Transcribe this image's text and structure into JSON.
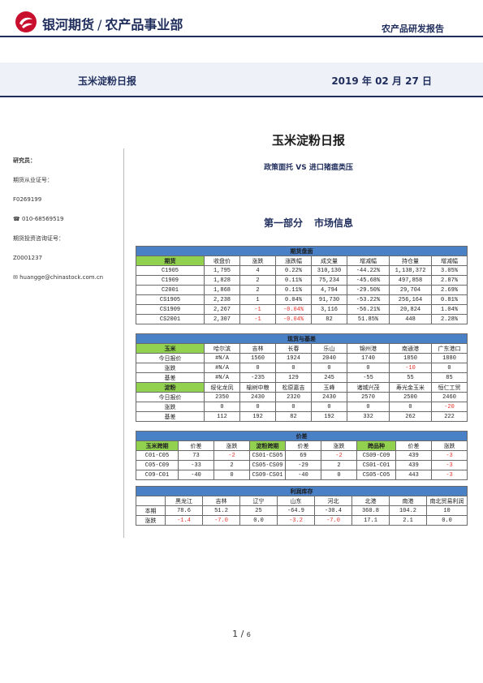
{
  "header": {
    "company": "银河期货",
    "department": "农产品事业部",
    "report_type": "农产品研发报告",
    "band_title": "玉米淀粉日报",
    "date": "2019 年 02 月 27 日"
  },
  "sidebar": {
    "researcher_label": "研究员：",
    "license_label": "期货从业证号：",
    "license_no": "F0269199",
    "phone": "☎ 010-68569519",
    "advisor_label": "期货投资咨询证号：",
    "advisor_no": "Z0001237",
    "email": "✉ huangge@chinastock.com.cn"
  },
  "title": "玉米淀粉日报",
  "subtitle": "政策面托 VS 进口猪瘟类压",
  "section": {
    "part": "第一部分",
    "name": "市场信息"
  },
  "futures": {
    "title": "期货盘面",
    "headers": [
      "期货",
      "收盘价",
      "涨跌",
      "涨跌幅",
      "成交量",
      "增减幅",
      "持仓量",
      "增减幅"
    ],
    "rows": [
      [
        "C1905",
        "1,795",
        "4",
        "0.22%",
        "310,130",
        "-44.22%",
        "1,138,372",
        "3.05%"
      ],
      [
        "C1909",
        "1,828",
        "2",
        "0.11%",
        "75,234",
        "-45.68%",
        "497,858",
        "2.87%"
      ],
      [
        "C2001",
        "1,868",
        "2",
        "0.11%",
        "4,794",
        "-29.50%",
        "29,704",
        "2.69%"
      ],
      [
        "CS1905",
        "2,238",
        "1",
        "0.04%",
        "91,730",
        "-53.22%",
        "256,164",
        "0.81%"
      ],
      [
        "CS1909",
        "2,267",
        "-1",
        "-0.04%",
        "3,116",
        "-56.21%",
        "20,824",
        "1.04%"
      ],
      [
        "CS2001",
        "2,307",
        "-1",
        "-0.04%",
        "82",
        "51.85%",
        "448",
        "2.28%"
      ]
    ]
  },
  "spot": {
    "title": "现货与基差",
    "corn_headers": [
      "玉米",
      "哈尔滨",
      "吉林",
      "长春",
      "乐山",
      "锦州港",
      "南通港",
      "广东港口"
    ],
    "corn_rows": [
      [
        "今日报价",
        "#N/A",
        "1560",
        "1924",
        "2040",
        "1740",
        "1850",
        "1880"
      ],
      [
        "涨跌",
        "#N/A",
        "0",
        "0",
        "0",
        "0",
        "-10",
        "0"
      ],
      [
        "基差",
        "#N/A",
        "-235",
        "129",
        "245",
        "-55",
        "55",
        "85"
      ]
    ],
    "starch_headers": [
      "淀粉",
      "绥化龙凤",
      "榆树中粮",
      "松原嘉吉",
      "玉峰",
      "诸城兴茂",
      "寿光金玉米",
      "恒仁工贸"
    ],
    "starch_rows": [
      [
        "今日报价",
        "2350",
        "2430",
        "2320",
        "2430",
        "2570",
        "2500",
        "2460"
      ],
      [
        "涨跌",
        "0",
        "0",
        "0",
        "0",
        "0",
        "0",
        "-20"
      ],
      [
        "基差",
        "112",
        "192",
        "82",
        "192",
        "332",
        "262",
        "222"
      ]
    ]
  },
  "spread": {
    "title": "价差",
    "headers": [
      "玉米跨期",
      "价差",
      "涨跌",
      "淀粉跨期",
      "价差",
      "涨跌",
      "跨品种",
      "价差",
      "涨跌"
    ],
    "rows": [
      [
        "C01-C05",
        "73",
        "-2",
        "CS01-CS05",
        "69",
        "-2",
        "CS09-C09",
        "439",
        "-3"
      ],
      [
        "C05-C09",
        "-33",
        "2",
        "CS05-CS09",
        "-29",
        "2",
        "CS01-C01",
        "439",
        "-3"
      ],
      [
        "C09-C01",
        "-40",
        "0",
        "CS09-CS01",
        "-40",
        "0",
        "CS05-C05",
        "443",
        "-3"
      ]
    ]
  },
  "inventory": {
    "title": "利润库存",
    "headers": [
      "",
      "黑龙江",
      "吉林",
      "辽宁",
      "山东",
      "河北",
      "北港",
      "南港",
      "南北贸易利润"
    ],
    "rows": [
      [
        "本期",
        "78.6",
        "51.2",
        "25",
        "-64.9",
        "-30.4",
        "360.8",
        "104.2",
        "10"
      ],
      [
        "涨跌",
        "-1.4",
        "-7.0",
        "0.0",
        "-3.2",
        "-7.0",
        "17.1",
        "2.1",
        "0.0"
      ]
    ]
  },
  "page": {
    "current": "1",
    "total": "6"
  }
}
